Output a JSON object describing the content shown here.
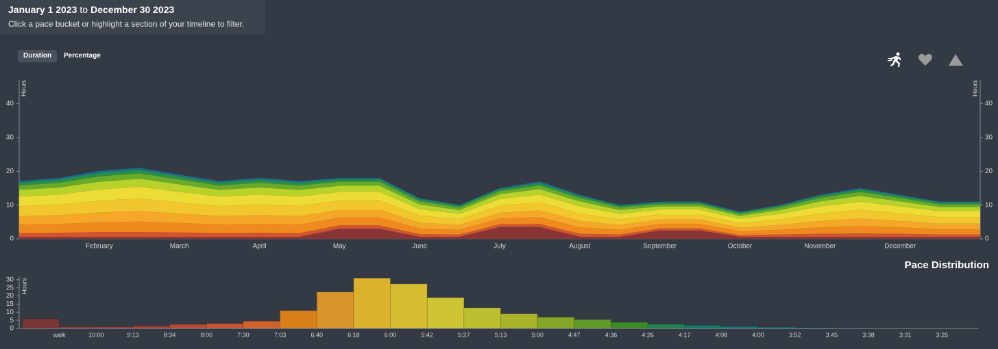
{
  "header": {
    "start": "January 1 2023",
    "to": "to",
    "end": "December 30 2023",
    "subtitle": "Click a pace bucket or highlight a section of your timeline to filter."
  },
  "toggles": [
    "Duration",
    "Percentage"
  ],
  "active_toggle": 0,
  "chart_data": [
    {
      "type": "area",
      "stacked": true,
      "ylabel": "Hours",
      "y2label": "Hours",
      "categories": [
        null,
        null,
        "February",
        null,
        "March",
        null,
        "April",
        null,
        "May",
        null,
        "June",
        null,
        "July",
        null,
        "August",
        null,
        "September",
        null,
        "October",
        null,
        "November",
        null,
        "December",
        null,
        null
      ],
      "series": [
        {
          "color": "#8a3535",
          "values": [
            0.6,
            0.6,
            0.6,
            0.6,
            0.6,
            0.6,
            0.6,
            0.6,
            3,
            3,
            0.6,
            0.6,
            3.5,
            3.5,
            0.6,
            0.6,
            2.5,
            2.5,
            0.6,
            0.6,
            0.6,
            0.6,
            0.6,
            0.6,
            0.6
          ]
        },
        {
          "color": "#d0552f",
          "values": [
            1.1,
            1.2,
            1.4,
            1.4,
            1.3,
            1.1,
            1.2,
            1.1,
            1.0,
            1.0,
            0.8,
            0.7,
            0.8,
            0.9,
            0.9,
            0.7,
            0.6,
            0.6,
            0.5,
            0.7,
            0.9,
            1.0,
            0.9,
            0.7,
            0.7
          ]
        },
        {
          "color": "#ee8a1e",
          "values": [
            2.5,
            2.6,
            2.9,
            3.1,
            2.8,
            2.5,
            2.6,
            2.5,
            2.3,
            2.3,
            1.7,
            1.4,
            1.7,
            2.0,
            1.9,
            1.4,
            1.3,
            1.3,
            1.1,
            1.4,
            1.9,
            2.2,
            1.9,
            1.6,
            1.6
          ]
        },
        {
          "color": "#f4a728",
          "values": [
            2.5,
            2.6,
            2.9,
            3.1,
            2.8,
            2.5,
            2.6,
            2.5,
            2.3,
            2.3,
            1.7,
            1.4,
            1.7,
            2.0,
            1.9,
            1.4,
            1.3,
            1.3,
            1.1,
            1.4,
            1.9,
            2.2,
            1.9,
            1.6,
            1.6
          ]
        },
        {
          "color": "#f2c62d",
          "values": [
            3.0,
            3.1,
            3.5,
            3.7,
            3.3,
            3.0,
            3.1,
            3.0,
            2.7,
            2.7,
            2.1,
            1.7,
            2.1,
            2.4,
            2.2,
            1.7,
            1.5,
            1.5,
            1.3,
            1.7,
            2.2,
            2.6,
            2.2,
            1.9,
            1.9
          ]
        },
        {
          "color": "#ecdc35",
          "values": [
            2.8,
            3.0,
            3.3,
            3.5,
            3.1,
            2.8,
            3.0,
            2.8,
            2.6,
            2.6,
            1.9,
            1.6,
            2.0,
            2.3,
            2.1,
            1.6,
            1.4,
            1.4,
            1.3,
            1.6,
            2.1,
            2.4,
            2.1,
            1.8,
            1.8
          ]
        },
        {
          "color": "#b9d12b",
          "values": [
            2.0,
            2.1,
            2.3,
            2.4,
            2.2,
            2.0,
            2.1,
            2.0,
            1.8,
            1.8,
            1.4,
            1.1,
            1.4,
            1.6,
            1.5,
            1.1,
            1.0,
            1.0,
            0.9,
            1.1,
            1.5,
            1.7,
            1.5,
            1.2,
            1.2
          ]
        },
        {
          "color": "#68aa2a",
          "values": [
            1.3,
            1.4,
            1.6,
            1.6,
            1.5,
            1.3,
            1.4,
            1.3,
            1.2,
            1.2,
            0.9,
            0.8,
            0.9,
            1.1,
            1.0,
            0.8,
            0.7,
            0.7,
            0.6,
            0.8,
            1.0,
            1.2,
            1.0,
            0.8,
            0.8
          ]
        },
        {
          "color": "#2a8f45",
          "values": [
            0.8,
            0.9,
            1.0,
            1.0,
            0.9,
            0.8,
            0.9,
            0.8,
            0.7,
            0.7,
            0.6,
            0.5,
            0.6,
            0.7,
            0.6,
            0.5,
            0.4,
            0.4,
            0.4,
            0.5,
            0.6,
            0.7,
            0.6,
            0.5,
            0.5
          ]
        },
        {
          "color": "#1a6f8f",
          "values": [
            0.5,
            0.5,
            0.6,
            0.6,
            0.5,
            0.5,
            0.5,
            0.5,
            0.4,
            0.4,
            0.3,
            0.2,
            0.3,
            0.5,
            0.3,
            0.2,
            0.3,
            0.3,
            0.2,
            0.2,
            0.3,
            0.4,
            0.3,
            0.3,
            0.3
          ]
        }
      ],
      "ylim": [
        0,
        47
      ],
      "yticks": [
        0,
        10,
        20,
        30,
        40
      ],
      "y2lim": [
        0,
        47
      ],
      "y2ticks": [
        0,
        10,
        20,
        30,
        40
      ]
    },
    {
      "type": "histogram",
      "title": "Pace Distribution",
      "ylabel": "Hours",
      "bins": [
        null,
        "walk",
        "10:00",
        "9:13",
        "8:34",
        "8:00",
        "7:30",
        "7:03",
        "6:40",
        "6:18",
        "6:00",
        "5:42",
        "5:27",
        "5:13",
        "5:00",
        "4:47",
        "4:36",
        "4:26",
        "4:17",
        "4:08",
        "4:00",
        "3:52",
        "3:45",
        "3:38",
        "3:31",
        "3:25",
        null
      ],
      "values": [
        6,
        1,
        1,
        1.5,
        2.5,
        3,
        4.5,
        11,
        22.4,
        31,
        27.4,
        19,
        12.7,
        9,
        7,
        5.5,
        3.8,
        2.6,
        2,
        1.3,
        0.8,
        0.5,
        0.3,
        0.2,
        0.2,
        0.2
      ],
      "colors": [
        "#7a3535",
        "#8e3a36",
        "#9a3d36",
        "#a84235",
        "#b84a33",
        "#c85432",
        "#d0622e",
        "#d97f1a",
        "#d9952a",
        "#dbb22e",
        "#d4bd30",
        "#cdc533",
        "#bcc02e",
        "#a8b32a",
        "#84a528",
        "#5e9a28",
        "#3a8a28",
        "#1f8450",
        "#17796a",
        "#15707a",
        "#1a6d85",
        "#1f6a8c",
        "#226c94",
        "#256e9a",
        "#2870a0",
        "#2b72a6"
      ],
      "ylim": [
        0,
        32
      ],
      "yticks": [
        0,
        5,
        10,
        15,
        20,
        25,
        30
      ]
    }
  ]
}
